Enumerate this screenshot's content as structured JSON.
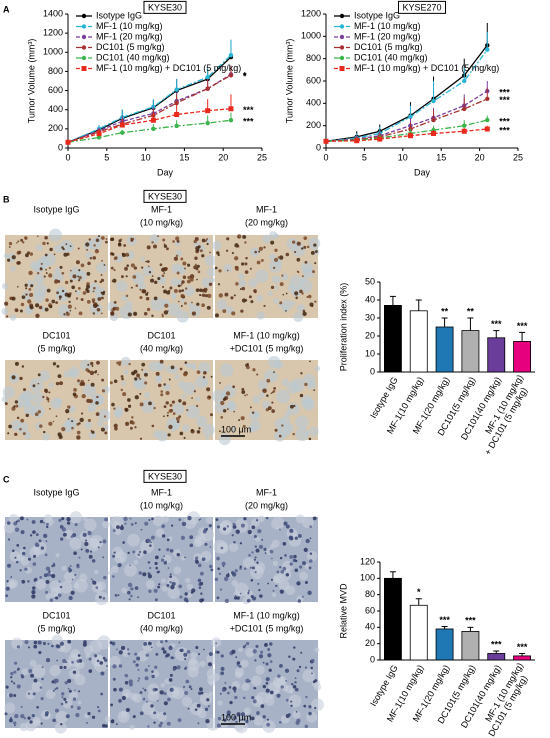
{
  "chart_data": [
    {
      "type": "line",
      "title": "KYSE30",
      "xlabel": "Day",
      "ylabel": "Tumor Volume (mm³)",
      "x": [
        0,
        4,
        7,
        11,
        14,
        18,
        21
      ],
      "xlim": [
        0,
        25
      ],
      "xticks": [
        0,
        5,
        10,
        15,
        20,
        25
      ],
      "ylim": [
        0,
        1400
      ],
      "yticks": [
        0,
        200,
        400,
        600,
        800,
        1000,
        1200,
        1400
      ],
      "series": [
        {
          "name": "Isotype IgG",
          "color": "#000000",
          "values": [
            60,
            190,
            310,
            420,
            600,
            720,
            950
          ],
          "errors": [
            10,
            40,
            90,
            80,
            120,
            110,
            180
          ]
        },
        {
          "name": "MF-1 (10 mg/kg)",
          "color": "#29b6d6",
          "values": [
            60,
            200,
            320,
            430,
            610,
            740,
            970
          ],
          "errors": [
            10,
            40,
            80,
            80,
            110,
            100,
            160
          ]
        },
        {
          "name": "MF-1 (20 mg/kg)",
          "color": "#7b3f9e",
          "values": [
            60,
            180,
            280,
            360,
            490,
            620,
            770
          ],
          "errors": [
            10,
            30,
            60,
            70,
            90,
            100,
            90
          ],
          "significance": "*"
        },
        {
          "name": "DC101 (5 mg/kg)",
          "color": "#a83232",
          "values": [
            60,
            170,
            250,
            340,
            470,
            620,
            760
          ],
          "errors": [
            10,
            30,
            60,
            70,
            90,
            100,
            100
          ],
          "significance": "*"
        },
        {
          "name": "DC101 (40 mg/kg)",
          "color": "#3cb44b",
          "values": [
            60,
            110,
            160,
            200,
            230,
            260,
            290
          ],
          "errors": [
            5,
            20,
            30,
            50,
            60,
            80,
            80
          ],
          "significance": "***"
        },
        {
          "name": "MF-1 (10 mg/kg) + DC101 (5 mg/kg)",
          "color": "#e8291c",
          "values": [
            60,
            150,
            240,
            290,
            350,
            390,
            410
          ],
          "errors": [
            10,
            30,
            60,
            80,
            100,
            120,
            150
          ],
          "significance": "***"
        }
      ]
    },
    {
      "type": "line",
      "title": "KYSE270",
      "xlabel": "Day",
      "ylabel": "Tumor Volume (mm³)",
      "x": [
        0,
        4,
        7,
        11,
        14,
        18,
        21
      ],
      "xlim": [
        0,
        25
      ],
      "xticks": [
        0,
        5,
        10,
        15,
        20,
        25
      ],
      "ylim": [
        0,
        1200
      ],
      "yticks": [
        0,
        200,
        400,
        600,
        800,
        1000,
        1200
      ],
      "series": [
        {
          "name": "Isotype IgG",
          "color": "#000000",
          "values": [
            60,
            100,
            150,
            290,
            440,
            650,
            920
          ],
          "errors": [
            20,
            50,
            60,
            120,
            200,
            150,
            200
          ]
        },
        {
          "name": "MF-1 (10 mg/kg)",
          "color": "#29b6d6",
          "values": [
            60,
            90,
            130,
            280,
            420,
            600,
            880
          ],
          "errors": [
            20,
            40,
            60,
            100,
            180,
            120,
            160
          ]
        },
        {
          "name": "MF-1 (20 mg/kg)",
          "color": "#7b3f9e",
          "values": [
            60,
            80,
            110,
            200,
            270,
            380,
            510
          ],
          "errors": [
            15,
            30,
            40,
            70,
            90,
            100,
            90
          ],
          "significance": "***"
        },
        {
          "name": "DC101 (5 mg/kg)",
          "color": "#a83232",
          "values": [
            60,
            75,
            100,
            170,
            250,
            350,
            440
          ],
          "errors": [
            15,
            30,
            40,
            60,
            90,
            100,
            100
          ],
          "significance": "***"
        },
        {
          "name": "DC101 (40 mg/kg)",
          "color": "#3cb44b",
          "values": [
            60,
            70,
            90,
            130,
            160,
            200,
            250
          ],
          "errors": [
            10,
            20,
            30,
            40,
            40,
            50,
            40
          ],
          "significance": "***"
        },
        {
          "name": "MF-1 (10 mg/kg) + DC101 (5 mg/kg)",
          "color": "#e8291c",
          "values": [
            60,
            65,
            80,
            110,
            130,
            150,
            170
          ],
          "errors": [
            10,
            15,
            20,
            30,
            30,
            30,
            30
          ],
          "significance": "***"
        }
      ]
    },
    {
      "type": "bar",
      "ylabel": "Proliferation index (%)",
      "categories": [
        "Isotype IgG",
        "MF-1(10 mg/kg)",
        "MF-1(20 mg/kg)",
        "DC101(5 mg/kg)",
        "DC101(40 mg/kg)",
        "MF-1 (10 mg/kg)\n+ DC101 (5 mg/kg)"
      ],
      "values": [
        37,
        34,
        25,
        23,
        19,
        17
      ],
      "errors": [
        5,
        6,
        5,
        7,
        4,
        5
      ],
      "colors": [
        "#000000",
        "#ffffff",
        "#1f78b4",
        "#b0b0b0",
        "#6a3d9a",
        "#e6007e"
      ],
      "significance": [
        null,
        null,
        "**",
        "**",
        "***",
        "***"
      ],
      "ylim": [
        0,
        50
      ],
      "yticks": [
        0,
        10,
        20,
        30,
        40,
        50
      ]
    },
    {
      "type": "bar",
      "ylabel": "Relative MVD",
      "categories": [
        "Isotype IgG",
        "MF-1(10 mg/kg)",
        "MF-1(20 mg/kg)",
        "DC101(5 mg/kg)",
        "DC101(40 mg/kg)",
        "MF-1 (10 mg/kg)\n+ DC101 (5 mg/kg)"
      ],
      "values": [
        100,
        67,
        38,
        35,
        8,
        5
      ],
      "errors": [
        8,
        8,
        3,
        5,
        3,
        3
      ],
      "colors": [
        "#000000",
        "#ffffff",
        "#1f78b4",
        "#b0b0b0",
        "#6a3d9a",
        "#e6007e"
      ],
      "significance": [
        null,
        "*",
        "***",
        "***",
        "***",
        "***"
      ],
      "ylim": [
        0,
        120
      ],
      "yticks": [
        0,
        20,
        40,
        60,
        80,
        100,
        120
      ]
    }
  ],
  "panels": [
    {
      "letter": "A"
    },
    {
      "letter": "B",
      "title": "KYSE30",
      "scale_bar": "100 μm",
      "images": [
        {
          "label": [
            "Isotype IgG"
          ]
        },
        {
          "label": [
            "MF-1",
            "(10 mg/kg)"
          ]
        },
        {
          "label": [
            "MF-1",
            "(20 mg/kg)"
          ]
        },
        {
          "label": [
            "DC101",
            "(5 mg/kg)"
          ]
        },
        {
          "label": [
            "DC101",
            "(40 mg/kg)"
          ]
        },
        {
          "label": [
            "MF-1 (10 mg/kg)",
            "+DC101 (5 mg/kg)"
          ]
        }
      ]
    },
    {
      "letter": "C",
      "title": "KYSE30",
      "scale_bar": "100 μm",
      "images": [
        {
          "label": [
            "Isotype IgG"
          ]
        },
        {
          "label": [
            "MF-1",
            "(10 mg/kg)"
          ]
        },
        {
          "label": [
            "MF-1",
            "(20 mg/kg)"
          ]
        },
        {
          "label": [
            "DC101",
            "(5 mg/kg)"
          ]
        },
        {
          "label": [
            "DC101",
            "(40 mg/kg)"
          ]
        },
        {
          "label": [
            "MF-1 (10 mg/kg)",
            "+DC101 (5 mg/kg)"
          ]
        }
      ]
    }
  ]
}
